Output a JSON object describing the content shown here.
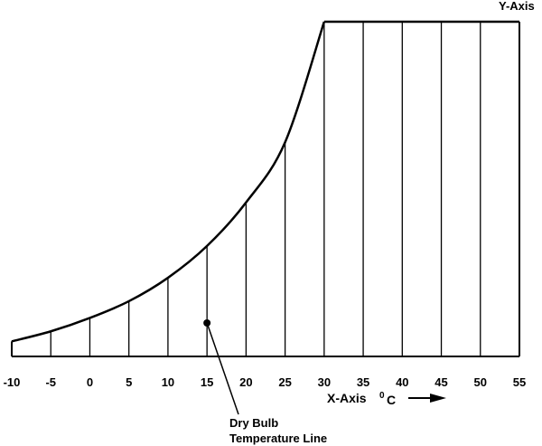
{
  "diagram": {
    "y_axis_label": "Y-Axis",
    "x_axis_label": "X-Axis",
    "unit_superscript": "0",
    "unit": "C",
    "annotation_line1": "Dry Bulb",
    "annotation_line2": "Temperature Line",
    "x_ticks": [
      "-10",
      "-5",
      "0",
      "5",
      "10",
      "15",
      "20",
      "25",
      "30",
      "35",
      "40",
      "45",
      "50",
      "55"
    ],
    "x_range": [
      -10,
      55
    ],
    "saturation_curve": [
      {
        "t": -10,
        "y": 0.045
      },
      {
        "t": -5,
        "y": 0.075
      },
      {
        "t": 0,
        "y": 0.115
      },
      {
        "t": 5,
        "y": 0.165
      },
      {
        "t": 10,
        "y": 0.235
      },
      {
        "t": 15,
        "y": 0.33
      },
      {
        "t": 20,
        "y": 0.46
      },
      {
        "t": 25,
        "y": 0.64
      },
      {
        "t": 30,
        "y": 1.0
      }
    ],
    "highlighted_temperature": 15
  }
}
